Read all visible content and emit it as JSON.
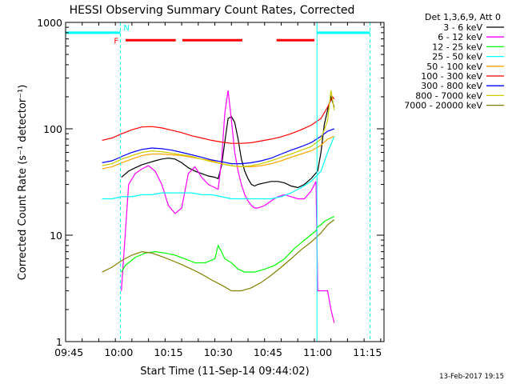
{
  "chart_data": {
    "type": "line",
    "title": "HESSI Observing Summary Count Rates, Corrected",
    "xlabel": "Start Time (11-Sep-14 09:44:02)",
    "ylabel": "Corrected Count Rate (s⁻¹ detector⁻¹)",
    "x_tick_labels": [
      "09:45",
      "10:00",
      "10:15",
      "10:30",
      "10:45",
      "11:00",
      "11:15"
    ],
    "x_ticks_min": [
      1,
      16,
      31,
      46,
      61,
      76,
      91
    ],
    "xlim": [
      0,
      96
    ],
    "y_scale": "log",
    "ylim": [
      1,
      1000
    ],
    "y_tick_labels": [
      "1",
      "10",
      "100",
      "1000"
    ],
    "y_ticks": [
      1,
      10,
      100,
      1000
    ],
    "legend_header": "Det 1,3,6,9, Att 0",
    "date_stamp": "13-Feb-2017 19:15",
    "flags": {
      "night_label": "N",
      "flare_label": "F",
      "night_color": "#00ffff",
      "flare_color": "#ff0000",
      "night_segments": [
        [
          0,
          16.5
        ],
        [
          75.8,
          91.8
        ]
      ],
      "night_level": 800,
      "night_bounds": [
        16.5,
        75.8,
        91.8
      ],
      "flare_segments": [
        [
          18.1,
          33.2
        ],
        [
          35.2,
          53.3
        ],
        [
          63.6,
          75.0
        ]
      ],
      "flare_level": 680,
      "night_boundary_solid": [
        75.8
      ]
    },
    "series": [
      {
        "name": "3 - 6 keV",
        "color": "#000000",
        "x": [
          16.8,
          19,
          21,
          23,
          25,
          27,
          29,
          31,
          33,
          35,
          37,
          39,
          41,
          43,
          45,
          46,
          47,
          48,
          49,
          50,
          51,
          52,
          53,
          54,
          55,
          56,
          57,
          58,
          60,
          62,
          64,
          66,
          68,
          70,
          72,
          74,
          76,
          77,
          78,
          79,
          80,
          81
        ],
        "y": [
          35,
          40,
          43,
          46,
          48,
          50,
          52,
          53,
          52,
          48,
          43,
          40,
          38,
          36,
          35,
          34,
          45,
          75,
          125,
          130,
          115,
          80,
          52,
          40,
          34,
          30,
          29,
          30,
          31,
          32,
          32,
          31,
          29,
          28,
          30,
          34,
          40,
          60,
          110,
          150,
          200,
          160
        ]
      },
      {
        "name": "6 - 12 keV",
        "color": "#ff00ff",
        "x": [
          16.8,
          19,
          21,
          23,
          25,
          27,
          29,
          31,
          33,
          35,
          37,
          39,
          41,
          43,
          45,
          46,
          47,
          48,
          49,
          50,
          51,
          52,
          53,
          54,
          55,
          56,
          57,
          58,
          60,
          62,
          64,
          66,
          68,
          70,
          72,
          74,
          75.5,
          76,
          77,
          78,
          79,
          80,
          81
        ],
        "y": [
          3,
          30,
          38,
          42,
          45,
          40,
          30,
          19,
          16,
          18,
          38,
          44,
          35,
          30,
          28,
          27,
          50,
          140,
          230,
          120,
          60,
          40,
          30,
          24,
          21,
          19,
          18,
          18,
          19,
          21,
          23,
          24,
          23,
          22,
          22,
          26,
          32,
          3,
          3,
          3,
          3,
          2,
          1.5
        ]
      },
      {
        "name": "12 - 25 keV",
        "color": "#00ff00",
        "x": [
          16.8,
          18,
          21,
          24,
          27,
          30,
          33,
          36,
          39,
          42,
          45,
          46,
          47,
          48,
          50,
          52,
          54,
          57,
          60,
          63,
          66,
          69,
          72,
          75.5,
          76,
          77,
          78,
          79,
          80,
          81
        ],
        "y": [
          4.5,
          5.2,
          6.2,
          6.8,
          7.0,
          6.8,
          6.5,
          6.0,
          5.5,
          5.5,
          6.0,
          8.0,
          7.0,
          6.0,
          5.5,
          4.8,
          4.5,
          4.5,
          4.8,
          5.2,
          6.0,
          7.5,
          9.0,
          11.0,
          12.0,
          12.5,
          13.5,
          14.0,
          14.5,
          15.0
        ]
      },
      {
        "name": "25 - 50 keV",
        "color": "#00ffff",
        "x": [
          11,
          14,
          17,
          20,
          23,
          26,
          29,
          32,
          35,
          38,
          41,
          44,
          47,
          50,
          53,
          56,
          59,
          62,
          65,
          68,
          71,
          74,
          77,
          79,
          81
        ],
        "y": [
          22,
          22,
          23,
          23,
          24,
          24,
          25,
          25,
          25,
          25,
          24,
          24,
          23,
          22,
          22,
          22,
          22,
          22,
          23,
          25,
          28,
          32,
          40,
          60,
          85
        ]
      },
      {
        "name": "50 - 100 keV",
        "color": "#ffa500",
        "x": [
          11,
          14,
          17,
          20,
          23,
          26,
          29,
          32,
          35,
          38,
          41,
          44,
          47,
          50,
          53,
          56,
          59,
          62,
          65,
          68,
          71,
          74,
          77,
          79,
          81
        ],
        "y": [
          42,
          44,
          48,
          52,
          56,
          58,
          58,
          57,
          56,
          54,
          52,
          50,
          47,
          45,
          44,
          44,
          45,
          47,
          50,
          54,
          58,
          62,
          70,
          80,
          85
        ]
      },
      {
        "name": "100 - 300 keV",
        "color": "#ff0000",
        "x": [
          11,
          14,
          17,
          20,
          23,
          26,
          29,
          32,
          35,
          38,
          41,
          44,
          47,
          50,
          53,
          56,
          59,
          62,
          65,
          68,
          71,
          74,
          77,
          79,
          80.5,
          81
        ],
        "y": [
          78,
          82,
          90,
          98,
          104,
          105,
          102,
          97,
          92,
          86,
          82,
          78,
          75,
          73,
          73,
          74,
          77,
          80,
          84,
          90,
          98,
          108,
          125,
          160,
          200,
          190
        ]
      },
      {
        "name": "300 - 800 keV",
        "color": "#0000ff",
        "x": [
          11,
          14,
          17,
          20,
          23,
          26,
          29,
          32,
          35,
          38,
          41,
          44,
          47,
          50,
          53,
          56,
          59,
          62,
          65,
          68,
          71,
          74,
          77,
          79,
          81
        ],
        "y": [
          48,
          50,
          55,
          60,
          64,
          66,
          65,
          63,
          60,
          57,
          54,
          51,
          49,
          47,
          47,
          48,
          50,
          53,
          58,
          63,
          68,
          74,
          85,
          95,
          100
        ]
      },
      {
        "name": "800 - 7000 keV",
        "color": "#cccc00",
        "x": [
          11,
          14,
          17,
          20,
          23,
          26,
          29,
          32,
          35,
          38,
          41,
          44,
          47,
          50,
          53,
          56,
          59,
          62,
          65,
          68,
          71,
          74,
          77,
          79,
          80,
          81
        ],
        "y": [
          45,
          47,
          52,
          56,
          60,
          62,
          61,
          59,
          57,
          55,
          52,
          49,
          47,
          45,
          44,
          45,
          47,
          50,
          54,
          58,
          63,
          68,
          80,
          120,
          230,
          150
        ]
      },
      {
        "name": "7000 - 20000 keV",
        "color": "#808000",
        "x": [
          11,
          14,
          17,
          20,
          23,
          26,
          29,
          32,
          35,
          38,
          41,
          44,
          47,
          50,
          53,
          56,
          59,
          62,
          65,
          68,
          71,
          74,
          77,
          79,
          81
        ],
        "y": [
          4.5,
          5.0,
          5.8,
          6.5,
          7.0,
          6.8,
          6.3,
          5.8,
          5.3,
          4.8,
          4.3,
          3.8,
          3.4,
          3.0,
          3.0,
          3.2,
          3.6,
          4.2,
          5.0,
          6.0,
          7.3,
          8.6,
          10.5,
          12.5,
          14.0
        ]
      }
    ]
  }
}
